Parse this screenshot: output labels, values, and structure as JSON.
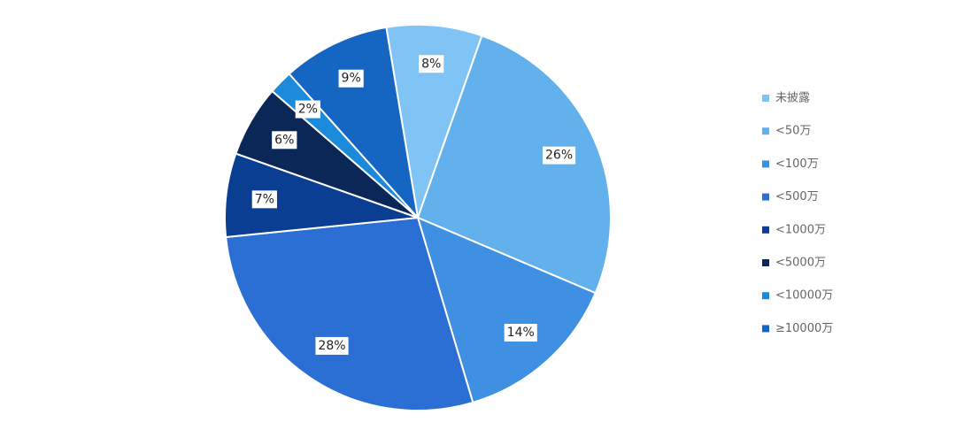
{
  "chart_data": {
    "type": "pie",
    "categories": [
      "未披露",
      "<50万",
      "<100万",
      "<500万",
      "<1000万",
      "<5000万",
      "<10000万",
      "≥10000万"
    ],
    "values": [
      8,
      26,
      14,
      28,
      7,
      6,
      2,
      9
    ],
    "value_labels": [
      "8%",
      "26%",
      "14%",
      "28%",
      "7%",
      "6%",
      "2%",
      "9%"
    ],
    "colors": [
      "#80c4f5",
      "#62b0ec",
      "#3f90e2",
      "#2c6fd4",
      "#0a3e92",
      "#0a2757",
      "#1b8ada",
      "#1566c2"
    ],
    "legend": "right"
  }
}
